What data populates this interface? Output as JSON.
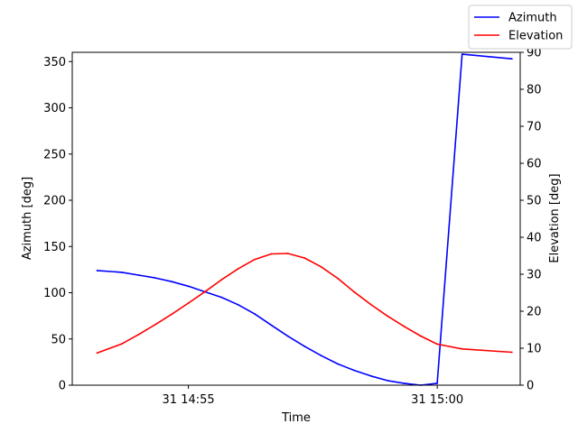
{
  "chart_data": {
    "type": "line",
    "xlabel": "Time",
    "ylabel_left": "Azimuth [deg]",
    "ylabel_right": "Elevation [deg]",
    "xlim": [
      "14:52:40",
      "15:01:40"
    ],
    "x_ticks": [
      {
        "time": "14:55:00",
        "label": "31 14:55"
      },
      {
        "time": "15:00:00",
        "label": "31 15:00"
      }
    ],
    "ylim_left": [
      0,
      360
    ],
    "yticks_left": [
      "0",
      "50",
      "100",
      "150",
      "200",
      "250",
      "300",
      "350"
    ],
    "ylim_right": [
      0,
      90
    ],
    "yticks_right": [
      "0",
      "10",
      "20",
      "30",
      "40",
      "50",
      "60",
      "70",
      "80",
      "90"
    ],
    "grid": false,
    "legend_position": "top-right",
    "series": [
      {
        "name": "Azimuth",
        "axis": "left",
        "color": "#0000ff",
        "x": [
          "14:53:10",
          "14:53:40",
          "14:54:00",
          "14:54:20",
          "14:54:40",
          "14:55:00",
          "14:55:20",
          "14:55:40",
          "14:56:00",
          "14:56:20",
          "14:56:40",
          "14:57:00",
          "14:57:20",
          "14:57:40",
          "14:58:00",
          "14:58:20",
          "14:58:40",
          "14:59:00",
          "14:59:20",
          "14:59:40",
          "15:00:00",
          "15:00:30",
          "15:01:30"
        ],
        "values": [
          124,
          122,
          119,
          116,
          112,
          107,
          101,
          95,
          87,
          77,
          65,
          53,
          42,
          32,
          23,
          16,
          10,
          5,
          2,
          0,
          2,
          358,
          353
        ]
      },
      {
        "name": "Elevation",
        "axis": "right",
        "color": "#ff0000",
        "x": [
          "14:53:10",
          "14:53:40",
          "14:54:00",
          "14:54:20",
          "14:54:40",
          "14:55:00",
          "14:55:20",
          "14:55:40",
          "14:56:00",
          "14:56:20",
          "14:56:40",
          "14:57:00",
          "14:57:20",
          "14:57:40",
          "14:58:00",
          "14:58:20",
          "14:58:40",
          "14:59:00",
          "14:59:20",
          "14:59:40",
          "15:00:00",
          "15:00:30",
          "15:01:30"
        ],
        "values": [
          8.7,
          11.2,
          13.7,
          16.4,
          19.2,
          22.2,
          25.3,
          28.5,
          31.5,
          34.0,
          35.5,
          35.6,
          34.4,
          32.0,
          28.9,
          25.2,
          21.8,
          18.7,
          15.9,
          13.3,
          11.1,
          9.8,
          8.9
        ]
      }
    ]
  }
}
